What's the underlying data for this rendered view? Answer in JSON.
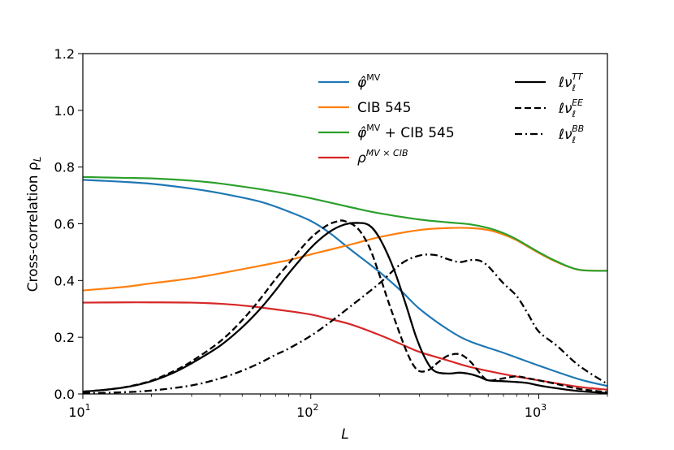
{
  "chart_data": {
    "type": "line",
    "title": "",
    "xlabel": "L",
    "ylabel": "Cross-correlation ρ",
    "ylabel_subscript": "L",
    "xscale": "log",
    "xlim": [
      10,
      2000
    ],
    "ylim": [
      0,
      1.2
    ],
    "x_ticks": [
      {
        "value": 10,
        "base": "10",
        "exp": "1"
      },
      {
        "value": 100,
        "base": "10",
        "exp": "2"
      },
      {
        "value": 1000,
        "base": "10",
        "exp": "3"
      }
    ],
    "y_ticks": [
      {
        "value": 0.0,
        "label": "0.0"
      },
      {
        "value": 0.2,
        "label": "0.2"
      },
      {
        "value": 0.4,
        "label": "0.4"
      },
      {
        "value": 0.6,
        "label": "0.6"
      },
      {
        "value": 0.8,
        "label": "0.8"
      },
      {
        "value": 1.0,
        "label": "1.0"
      },
      {
        "value": 1.2,
        "label": "1.2"
      }
    ],
    "grid": false,
    "legend_left": {
      "placement": "top-center",
      "entries": [
        {
          "series": "phi_mv",
          "main": "φ̂",
          "sup": "MV",
          "after": ""
        },
        {
          "series": "cib545",
          "main": "CIB  545",
          "sup": "",
          "after": ""
        },
        {
          "series": "combined",
          "main": "φ̂",
          "sup": "MV",
          "after": " + CIB  545"
        },
        {
          "series": "rho_cross",
          "main": "ρ",
          "sup": "MV × CIB",
          "after": ""
        }
      ]
    },
    "legend_right": {
      "placement": "top-right",
      "entries": [
        {
          "series": "nu_tt",
          "main": "ℓν",
          "sup": "TT",
          "sub": "ℓ"
        },
        {
          "series": "nu_ee",
          "main": "ℓν",
          "sup": "EE",
          "sub": "ℓ"
        },
        {
          "series": "nu_bb",
          "main": "ℓν",
          "sup": "BB",
          "sub": "ℓ"
        }
      ]
    },
    "series": [
      {
        "name": "phi_mv",
        "color": "#1f77b4",
        "style": "solid",
        "x": [
          10,
          15,
          20,
          30,
          40,
          60,
          80,
          100,
          120,
          150,
          200,
          250,
          300,
          400,
          500,
          700,
          1000,
          1500,
          2000
        ],
        "y": [
          0.755,
          0.748,
          0.741,
          0.724,
          0.708,
          0.678,
          0.643,
          0.61,
          0.57,
          0.508,
          0.43,
          0.362,
          0.3,
          0.227,
          0.185,
          0.145,
          0.1,
          0.052,
          0.028
        ]
      },
      {
        "name": "cib545",
        "color": "#ff7f0e",
        "style": "solid",
        "x": [
          10,
          15,
          20,
          30,
          40,
          60,
          80,
          100,
          150,
          200,
          300,
          400,
          500,
          600,
          700,
          800,
          1000,
          1200,
          1500,
          2000
        ],
        "y": [
          0.365,
          0.377,
          0.39,
          0.408,
          0.425,
          0.452,
          0.472,
          0.492,
          0.527,
          0.553,
          0.578,
          0.585,
          0.585,
          0.578,
          0.562,
          0.542,
          0.497,
          0.465,
          0.438,
          0.434
        ]
      },
      {
        "name": "combined",
        "color": "#2ca02c",
        "style": "solid",
        "x": [
          10,
          15,
          20,
          30,
          40,
          60,
          80,
          100,
          150,
          200,
          300,
          400,
          500,
          600,
          700,
          800,
          1000,
          1200,
          1500,
          2000
        ],
        "y": [
          0.765,
          0.762,
          0.76,
          0.752,
          0.742,
          0.722,
          0.705,
          0.69,
          0.658,
          0.637,
          0.615,
          0.605,
          0.598,
          0.585,
          0.567,
          0.545,
          0.5,
          0.467,
          0.438,
          0.434
        ]
      },
      {
        "name": "rho_cross",
        "color": "#d62728",
        "style": "solid",
        "x": [
          10,
          15,
          20,
          30,
          40,
          50,
          60,
          80,
          100,
          120,
          150,
          200,
          250,
          300,
          400,
          500,
          700,
          1000,
          1500,
          2000
        ],
        "y": [
          0.322,
          0.323,
          0.323,
          0.322,
          0.318,
          0.312,
          0.305,
          0.292,
          0.28,
          0.265,
          0.245,
          0.208,
          0.175,
          0.148,
          0.118,
          0.095,
          0.07,
          0.048,
          0.025,
          0.015
        ]
      },
      {
        "name": "nu_tt",
        "color": "#000000",
        "style": "solid",
        "x": [
          10,
          13,
          16,
          20,
          25,
          30,
          40,
          50,
          60,
          70,
          80,
          100,
          120,
          140,
          160,
          180,
          200,
          230,
          260,
          290,
          320,
          350,
          400,
          450,
          500,
          550,
          600,
          700,
          800,
          900,
          1000,
          1200,
          1500,
          2000
        ],
        "y": [
          0.008,
          0.016,
          0.026,
          0.045,
          0.075,
          0.108,
          0.17,
          0.235,
          0.3,
          0.365,
          0.425,
          0.515,
          0.57,
          0.597,
          0.603,
          0.595,
          0.55,
          0.445,
          0.32,
          0.2,
          0.12,
          0.08,
          0.072,
          0.075,
          0.07,
          0.06,
          0.048,
          0.045,
          0.042,
          0.038,
          0.03,
          0.02,
          0.01,
          0.003
        ]
      },
      {
        "name": "nu_ee",
        "color": "#000000",
        "style": "dashed",
        "x": [
          10,
          13,
          16,
          20,
          25,
          30,
          40,
          50,
          60,
          70,
          80,
          90,
          100,
          110,
          120,
          130,
          140,
          160,
          180,
          200,
          220,
          240,
          260,
          280,
          300,
          330,
          360,
          400,
          450,
          500,
          550,
          600,
          700,
          800,
          900,
          1000,
          1200,
          1500,
          2000
        ],
        "y": [
          0.008,
          0.016,
          0.027,
          0.047,
          0.08,
          0.115,
          0.185,
          0.26,
          0.335,
          0.405,
          0.46,
          0.51,
          0.55,
          0.578,
          0.598,
          0.608,
          0.61,
          0.585,
          0.52,
          0.42,
          0.32,
          0.235,
          0.16,
          0.105,
          0.08,
          0.085,
          0.11,
          0.135,
          0.14,
          0.115,
          0.075,
          0.048,
          0.055,
          0.062,
          0.055,
          0.048,
          0.035,
          0.018,
          0.006
        ]
      },
      {
        "name": "nu_bb",
        "color": "#000000",
        "style": "dashdot",
        "x": [
          10,
          15,
          20,
          30,
          40,
          50,
          60,
          70,
          80,
          100,
          120,
          150,
          200,
          250,
          300,
          350,
          400,
          450,
          500,
          550,
          600,
          700,
          800,
          900,
          1000,
          1200,
          1500,
          2000
        ],
        "y": [
          0.002,
          0.006,
          0.012,
          0.03,
          0.055,
          0.082,
          0.11,
          0.138,
          0.16,
          0.205,
          0.25,
          0.31,
          0.39,
          0.46,
          0.488,
          0.49,
          0.475,
          0.465,
          0.472,
          0.47,
          0.45,
          0.39,
          0.345,
          0.28,
          0.22,
          0.17,
          0.1,
          0.035
        ]
      }
    ]
  }
}
